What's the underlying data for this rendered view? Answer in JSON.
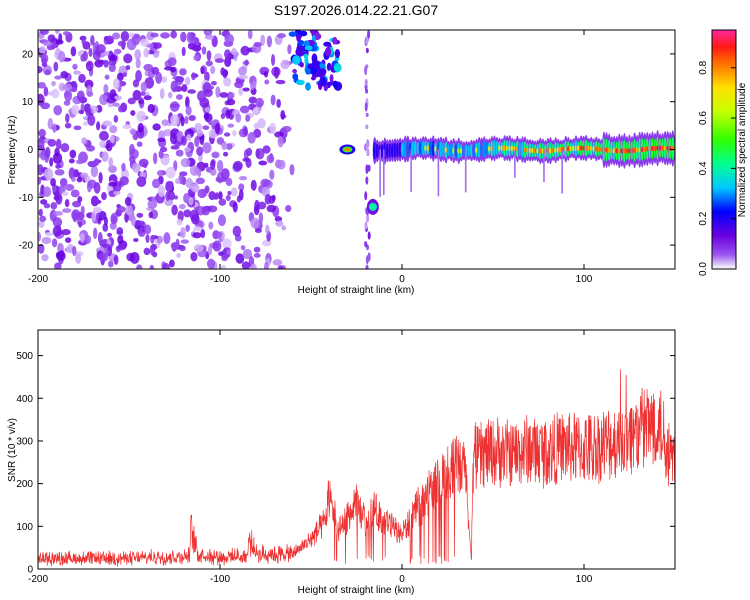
{
  "title": "S197.2026.014.22.21.G07",
  "chart_data": [
    {
      "type": "heatmap",
      "xlabel": "Height of straight line (km)",
      "ylabel": "Frequency (Hz)",
      "xlim": [
        -200,
        150
      ],
      "ylim": [
        -25,
        25
      ],
      "xticks": [
        -200,
        -100,
        0,
        100
      ],
      "yticks": [
        -20,
        -10,
        0,
        10,
        20
      ],
      "colorbar": {
        "label": "Normalized spectral amplitude",
        "range": [
          0,
          0.95
        ],
        "ticks": [
          0.0,
          0.2,
          0.4,
          0.6,
          0.8
        ],
        "tick_labels": [
          "0.0",
          "0.2",
          "0.4",
          "0.6",
          "0.8"
        ],
        "colors": [
          "#ffffff",
          "#9a55f0",
          "#6a00e0",
          "#0000ff",
          "#00c8ff",
          "#00ff90",
          "#30ff00",
          "#c8ff00",
          "#ffe000",
          "#ff7000",
          "#ff1818",
          "#ff2aa0"
        ]
      },
      "regions": [
        {
          "x": [
            -200,
            -65
          ],
          "freq": [
            -25,
            25
          ],
          "level": 0.12,
          "desc": "scattered noise"
        },
        {
          "x": [
            -60,
            -35
          ],
          "freq": [
            13,
            25
          ],
          "level": 0.35
        },
        {
          "x": [
            -34,
            -26
          ],
          "freq": [
            -1.5,
            1.5
          ],
          "level": 0.75
        },
        {
          "x": [
            -20,
            -12
          ],
          "freq": [
            -13.5,
            -10.5
          ],
          "level": 0.45
        },
        {
          "x": [
            -15,
            150
          ],
          "freq": [
            -1.5,
            1.5
          ],
          "level": 0.85
        }
      ]
    },
    {
      "type": "line",
      "xlabel": "Height of straight line (km)",
      "ylabel": "SNR (10 * v/v)",
      "xlim": [
        -200,
        150
      ],
      "ylim": [
        0,
        560
      ],
      "xticks": [
        -200,
        -100,
        0,
        100
      ],
      "yticks": [
        0,
        100,
        200,
        300,
        400,
        500
      ],
      "color": "#ee3030",
      "series": [
        {
          "x": [
            -200,
            -150,
            -117,
            -116,
            -112,
            -100,
            -85,
            -84,
            -80,
            -60,
            -50,
            -42,
            -40,
            -35,
            -30,
            -25,
            -20,
            -15,
            -10,
            -5,
            0,
            5,
            10,
            15,
            20,
            25,
            30,
            35,
            38,
            39,
            40,
            45,
            50,
            60,
            70,
            80,
            90,
            100,
            110,
            120,
            125,
            130,
            135,
            140,
            145,
            150
          ],
          "y": [
            25,
            25,
            30,
            90,
            35,
            28,
            30,
            70,
            35,
            35,
            70,
            110,
            180,
            90,
            120,
            150,
            110,
            140,
            110,
            100,
            80,
            120,
            150,
            180,
            200,
            230,
            240,
            230,
            20,
            230,
            260,
            270,
            275,
            270,
            280,
            275,
            285,
            280,
            290,
            300,
            310,
            320,
            330,
            350,
            300,
            250
          ]
        }
      ]
    }
  ]
}
